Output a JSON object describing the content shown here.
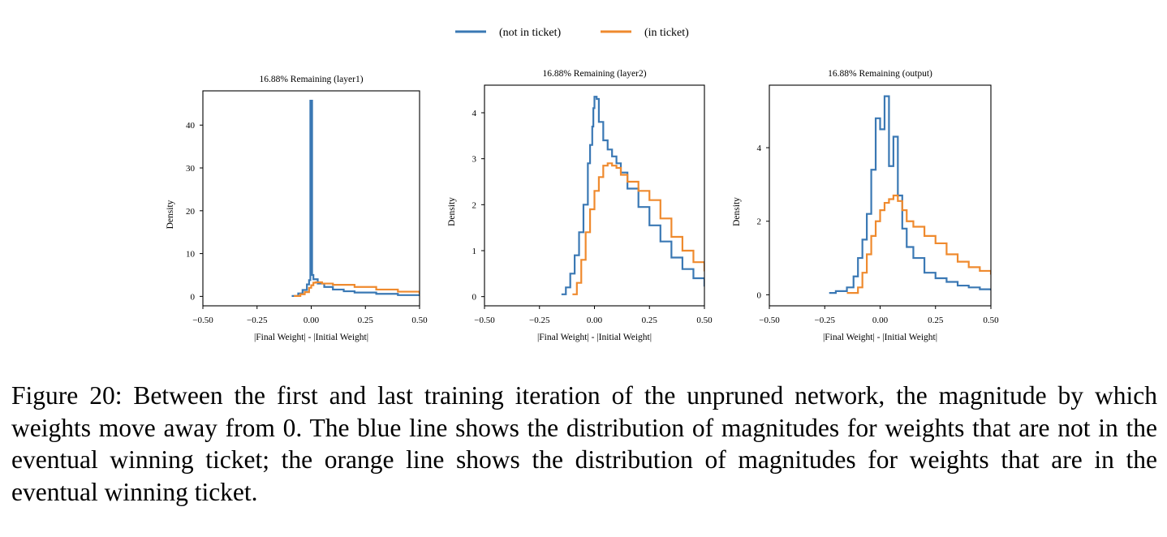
{
  "legend": {
    "items": [
      {
        "label": "(not in ticket)",
        "color": "#3a78b4"
      },
      {
        "label": "(in ticket)",
        "color": "#ef8a2e"
      }
    ]
  },
  "caption": "Figure 20: Between the first and last training iteration of the unpruned network, the magnitude by which weights move away from 0. The blue line shows the distribution of magnitudes for weights that are not in the eventual winning ticket; the orange line shows the distribution of magnitudes for weights that are in the eventual winning ticket.",
  "chart_data": [
    {
      "type": "line",
      "title": "16.88% Remaining (layer1)",
      "xlabel": "|Final Weight| - |Initial Weight|",
      "ylabel": "Density",
      "xlim": [
        -0.5,
        0.5
      ],
      "ylim": [
        -2.2,
        48
      ],
      "xticks": [
        -0.5,
        -0.25,
        0.0,
        0.25,
        0.5
      ],
      "xtick_labels": [
        "−0.50",
        "−0.25",
        "0.00",
        "0.25",
        "0.50"
      ],
      "yticks": [
        0,
        10,
        20,
        30,
        40
      ],
      "ytick_labels": [
        "0",
        "10",
        "20",
        "30",
        "40"
      ],
      "series": [
        {
          "name": "(not in ticket)",
          "x": [
            -0.09,
            -0.06,
            -0.04,
            -0.02,
            -0.01,
            -0.004,
            -0.004,
            0.004,
            0.004,
            0.01,
            0.03,
            0.06,
            0.1,
            0.15,
            0.2,
            0.3,
            0.4,
            0.5
          ],
          "y": [
            0.1,
            0.7,
            1.5,
            2.8,
            3.8,
            4.5,
            45.7,
            45.7,
            5.0,
            4.0,
            3.0,
            2.2,
            1.6,
            1.2,
            0.9,
            0.6,
            0.3,
            0.15
          ]
        },
        {
          "name": "(in ticket)",
          "x": [
            -0.08,
            -0.05,
            -0.03,
            -0.01,
            0.0,
            0.01,
            0.02,
            0.05,
            0.1,
            0.2,
            0.3,
            0.4,
            0.5
          ],
          "y": [
            0.1,
            0.5,
            1.0,
            2.0,
            2.6,
            3.2,
            3.3,
            3.0,
            2.7,
            2.2,
            1.6,
            1.1,
            0.6
          ]
        }
      ]
    },
    {
      "type": "line",
      "title": "16.88% Remaining (layer2)",
      "xlabel": "|Final Weight| - |Initial Weight|",
      "ylabel": "Density",
      "xlim": [
        -0.5,
        0.5
      ],
      "ylim": [
        -0.2,
        4.6
      ],
      "xticks": [
        -0.5,
        -0.25,
        0.0,
        0.25,
        0.5
      ],
      "xtick_labels": [
        "−0.50",
        "−0.25",
        "0.00",
        "0.25",
        "0.50"
      ],
      "yticks": [
        0,
        1,
        2,
        3,
        4
      ],
      "ytick_labels": [
        "0",
        "1",
        "2",
        "3",
        "4"
      ],
      "series": [
        {
          "name": "(not in ticket)",
          "x": [
            -0.15,
            -0.13,
            -0.11,
            -0.09,
            -0.07,
            -0.05,
            -0.03,
            -0.02,
            -0.01,
            -0.005,
            0.0,
            0.01,
            0.02,
            0.04,
            0.06,
            0.08,
            0.1,
            0.12,
            0.15,
            0.2,
            0.25,
            0.3,
            0.35,
            0.4,
            0.45,
            0.5
          ],
          "y": [
            0.05,
            0.2,
            0.5,
            0.9,
            1.4,
            2.0,
            2.9,
            3.3,
            3.7,
            4.1,
            4.35,
            4.3,
            3.8,
            3.4,
            3.2,
            3.05,
            2.9,
            2.7,
            2.35,
            1.95,
            1.55,
            1.2,
            0.85,
            0.6,
            0.4,
            0.22
          ]
        },
        {
          "name": "(in ticket)",
          "x": [
            -0.1,
            -0.08,
            -0.06,
            -0.04,
            -0.02,
            0.0,
            0.02,
            0.04,
            0.06,
            0.08,
            0.1,
            0.12,
            0.15,
            0.2,
            0.25,
            0.3,
            0.35,
            0.4,
            0.45,
            0.5
          ],
          "y": [
            0.05,
            0.3,
            0.8,
            1.4,
            1.9,
            2.3,
            2.6,
            2.85,
            2.9,
            2.85,
            2.8,
            2.65,
            2.5,
            2.3,
            2.1,
            1.7,
            1.3,
            1.0,
            0.75,
            0.55
          ]
        }
      ]
    },
    {
      "type": "line",
      "title": "16.88% Remaining (output)",
      "xlabel": "|Final Weight| - |Initial Weight|",
      "ylabel": "Density",
      "xlim": [
        -0.5,
        0.5
      ],
      "ylim": [
        -0.3,
        5.7
      ],
      "xticks": [
        -0.5,
        -0.25,
        0.0,
        0.25,
        0.5
      ],
      "xtick_labels": [
        "−0.50",
        "−0.25",
        "0.00",
        "0.25",
        "0.50"
      ],
      "yticks": [
        0,
        2,
        4
      ],
      "ytick_labels": [
        "0",
        "2",
        "4"
      ],
      "series": [
        {
          "name": "(not in ticket)",
          "x": [
            -0.23,
            -0.2,
            -0.15,
            -0.12,
            -0.1,
            -0.08,
            -0.06,
            -0.04,
            -0.02,
            0.0,
            0.02,
            0.04,
            0.06,
            0.08,
            0.1,
            0.12,
            0.15,
            0.2,
            0.25,
            0.3,
            0.35,
            0.4,
            0.45,
            0.5
          ],
          "y": [
            0.05,
            0.1,
            0.2,
            0.5,
            1.0,
            1.5,
            2.2,
            3.4,
            4.8,
            4.5,
            5.4,
            3.5,
            4.3,
            2.7,
            1.8,
            1.3,
            1.0,
            0.6,
            0.45,
            0.35,
            0.25,
            0.2,
            0.15,
            0.12
          ]
        },
        {
          "name": "(in ticket)",
          "x": [
            -0.15,
            -0.1,
            -0.08,
            -0.06,
            -0.04,
            -0.02,
            0.0,
            0.02,
            0.04,
            0.06,
            0.08,
            0.1,
            0.12,
            0.15,
            0.2,
            0.25,
            0.3,
            0.35,
            0.4,
            0.45,
            0.5
          ],
          "y": [
            0.05,
            0.2,
            0.6,
            1.1,
            1.6,
            2.0,
            2.3,
            2.5,
            2.6,
            2.7,
            2.55,
            2.3,
            2.0,
            1.85,
            1.6,
            1.4,
            1.1,
            0.9,
            0.75,
            0.65,
            0.55
          ]
        }
      ]
    }
  ]
}
